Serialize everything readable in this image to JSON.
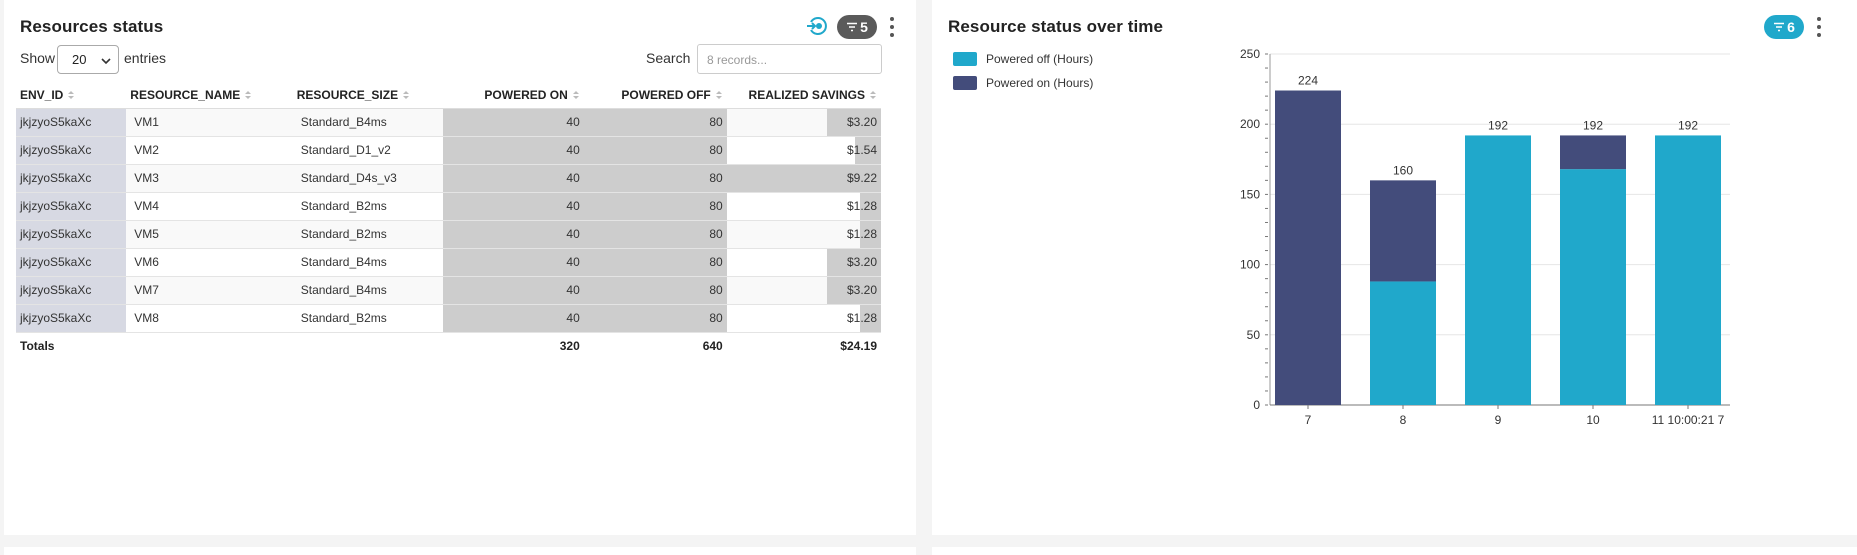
{
  "left_panel": {
    "title": "Resources status",
    "filter_count": "5",
    "show_label": "Show",
    "entries_value": "20",
    "entries_label": "entries",
    "search_label": "Search",
    "search_placeholder": "8 records...",
    "columns": [
      "ENV_ID",
      "RESOURCE_NAME",
      "RESOURCE_SIZE",
      "POWERED ON",
      "POWERED OFF",
      "REALIZED SAVINGS"
    ],
    "rows": [
      {
        "env_id": "jkjzyoS5kaXc",
        "name": "VM1",
        "size": "Standard_B4ms",
        "on": "40",
        "off": "80",
        "savings": "$3.20",
        "savings_value": 3.2
      },
      {
        "env_id": "jkjzyoS5kaXc",
        "name": "VM2",
        "size": "Standard_D1_v2",
        "on": "40",
        "off": "80",
        "savings": "$1.54",
        "savings_value": 1.54
      },
      {
        "env_id": "jkjzyoS5kaXc",
        "name": "VM3",
        "size": "Standard_D4s_v3",
        "on": "40",
        "off": "80",
        "savings": "$9.22",
        "savings_value": 9.22
      },
      {
        "env_id": "jkjzyoS5kaXc",
        "name": "VM4",
        "size": "Standard_B2ms",
        "on": "40",
        "off": "80",
        "savings": "$1.28",
        "savings_value": 1.28
      },
      {
        "env_id": "jkjzyoS5kaXc",
        "name": "VM5",
        "size": "Standard_B2ms",
        "on": "40",
        "off": "80",
        "savings": "$1.28",
        "savings_value": 1.28
      },
      {
        "env_id": "jkjzyoS5kaXc",
        "name": "VM6",
        "size": "Standard_B4ms",
        "on": "40",
        "off": "80",
        "savings": "$3.20",
        "savings_value": 3.2
      },
      {
        "env_id": "jkjzyoS5kaXc",
        "name": "VM7",
        "size": "Standard_B4ms",
        "on": "40",
        "off": "80",
        "savings": "$3.20",
        "savings_value": 3.2
      },
      {
        "env_id": "jkjzyoS5kaXc",
        "name": "VM8",
        "size": "Standard_B2ms",
        "on": "40",
        "off": "80",
        "savings": "$1.28",
        "savings_value": 1.28
      }
    ],
    "totals": {
      "label": "Totals",
      "on": "320",
      "off": "640",
      "savings": "$24.19"
    }
  },
  "right_panel": {
    "title": "Resource status over time",
    "filter_count": "6"
  },
  "icons": {
    "refresh": "refresh-cycle-icon",
    "filter": "filter-icon",
    "more": "kebab-menu-icon",
    "sort": "sort-icon",
    "dropdown": "chevron-down-icon"
  },
  "colors": {
    "powered_off": "#20a8cb",
    "powered_on": "#434c7b",
    "accent": "#20a8cb",
    "badge_gray": "#5a5a5a",
    "data_bar": "#cdcdcd"
  },
  "chart_data": {
    "type": "bar",
    "stacked": true,
    "categories": [
      "7",
      "8",
      "9",
      "10",
      "11 10:00:21 7"
    ],
    "series": [
      {
        "name": "Powered off (Hours)",
        "values": [
          0,
          88,
          192,
          168,
          192
        ],
        "color": "#20a8cb"
      },
      {
        "name": "Powered on (Hours)",
        "values": [
          224,
          72,
          0,
          24,
          0
        ],
        "color": "#434c7b"
      }
    ],
    "totals_labels": [
      "224",
      "160",
      "192",
      "192",
      "192"
    ],
    "ylim": [
      0,
      250
    ],
    "yticks": [
      "0",
      "50",
      "100",
      "150",
      "200",
      "250"
    ],
    "grid": true,
    "legend_position": "top-left"
  }
}
